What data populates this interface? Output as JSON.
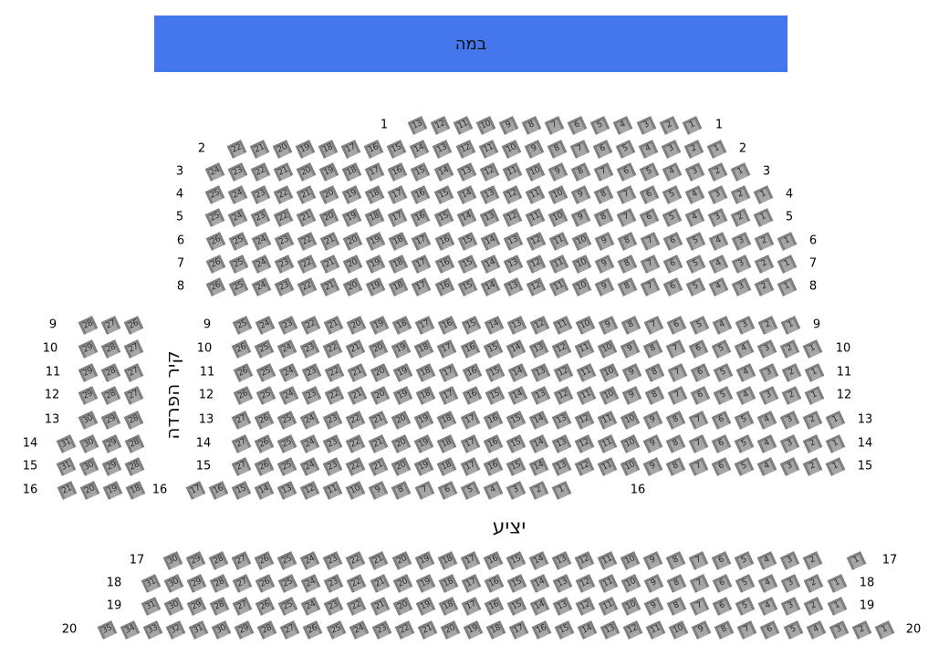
{
  "stage": {
    "label": "במה",
    "color": "#4477ee"
  },
  "wall_label": "קיר הפרדה",
  "balcony_label": "יציע",
  "seat_color": "#7f7f7f",
  "rows": [
    {
      "row": "1",
      "sections": [
        {
          "from": 13,
          "to": 1
        }
      ]
    },
    {
      "row": "2",
      "sections": [
        {
          "from": 22,
          "to": 1
        }
      ]
    },
    {
      "row": "3",
      "sections": [
        {
          "from": 24,
          "to": 1
        }
      ]
    },
    {
      "row": "4",
      "sections": [
        {
          "from": 25,
          "to": 1
        }
      ]
    },
    {
      "row": "5",
      "sections": [
        {
          "from": 25,
          "to": 1
        }
      ]
    },
    {
      "row": "6",
      "sections": [
        {
          "from": 26,
          "to": 1
        }
      ]
    },
    {
      "row": "7",
      "sections": [
        {
          "from": 26,
          "to": 1
        }
      ]
    },
    {
      "row": "8",
      "sections": [
        {
          "from": 26,
          "to": 1
        }
      ]
    },
    {
      "row": "9",
      "sections": [
        {
          "from": 28,
          "to": 26
        },
        {
          "from": 25,
          "to": 1
        }
      ]
    },
    {
      "row": "10",
      "sections": [
        {
          "from": 29,
          "to": 27
        },
        {
          "from": 26,
          "to": 1
        }
      ]
    },
    {
      "row": "11",
      "sections": [
        {
          "from": 29,
          "to": 27
        },
        {
          "from": 26,
          "to": 1
        }
      ]
    },
    {
      "row": "12",
      "sections": [
        {
          "from": 29,
          "to": 27
        },
        {
          "from": 26,
          "to": 1
        }
      ]
    },
    {
      "row": "13",
      "sections": [
        {
          "from": 30,
          "to": 28
        },
        {
          "from": 27,
          "to": 1
        }
      ]
    },
    {
      "row": "14",
      "sections": [
        {
          "from": 31,
          "to": 28
        },
        {
          "from": 27,
          "to": 1
        }
      ]
    },
    {
      "row": "15",
      "sections": [
        {
          "from": 31,
          "to": 28
        },
        {
          "from": 27,
          "to": 1
        }
      ]
    },
    {
      "row": "16",
      "sections": [
        {
          "from": 21,
          "to": 18
        },
        {
          "from": 17,
          "to": 1
        }
      ]
    },
    {
      "row": "17",
      "sections": [
        {
          "from": 30,
          "to": 2
        },
        {
          "from": 1,
          "to": 1
        }
      ]
    },
    {
      "row": "18",
      "sections": [
        {
          "from": 31,
          "to": 1
        }
      ]
    },
    {
      "row": "19",
      "sections": [
        {
          "from": 31,
          "to": 1
        }
      ]
    },
    {
      "row": "20",
      "sections": [
        {
          "from": 35,
          "to": 1
        }
      ]
    }
  ]
}
